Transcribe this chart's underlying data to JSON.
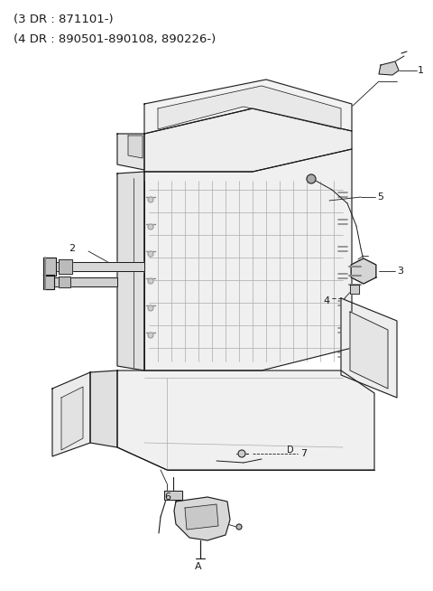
{
  "title_line1": "(3 DR : 871101-)",
  "title_line2": "(4 DR : 890501-890108, 890226-)",
  "bg_color": "#ffffff",
  "line_color": "#1a1a1a",
  "figsize": [
    4.8,
    6.54
  ],
  "dpi": 100
}
